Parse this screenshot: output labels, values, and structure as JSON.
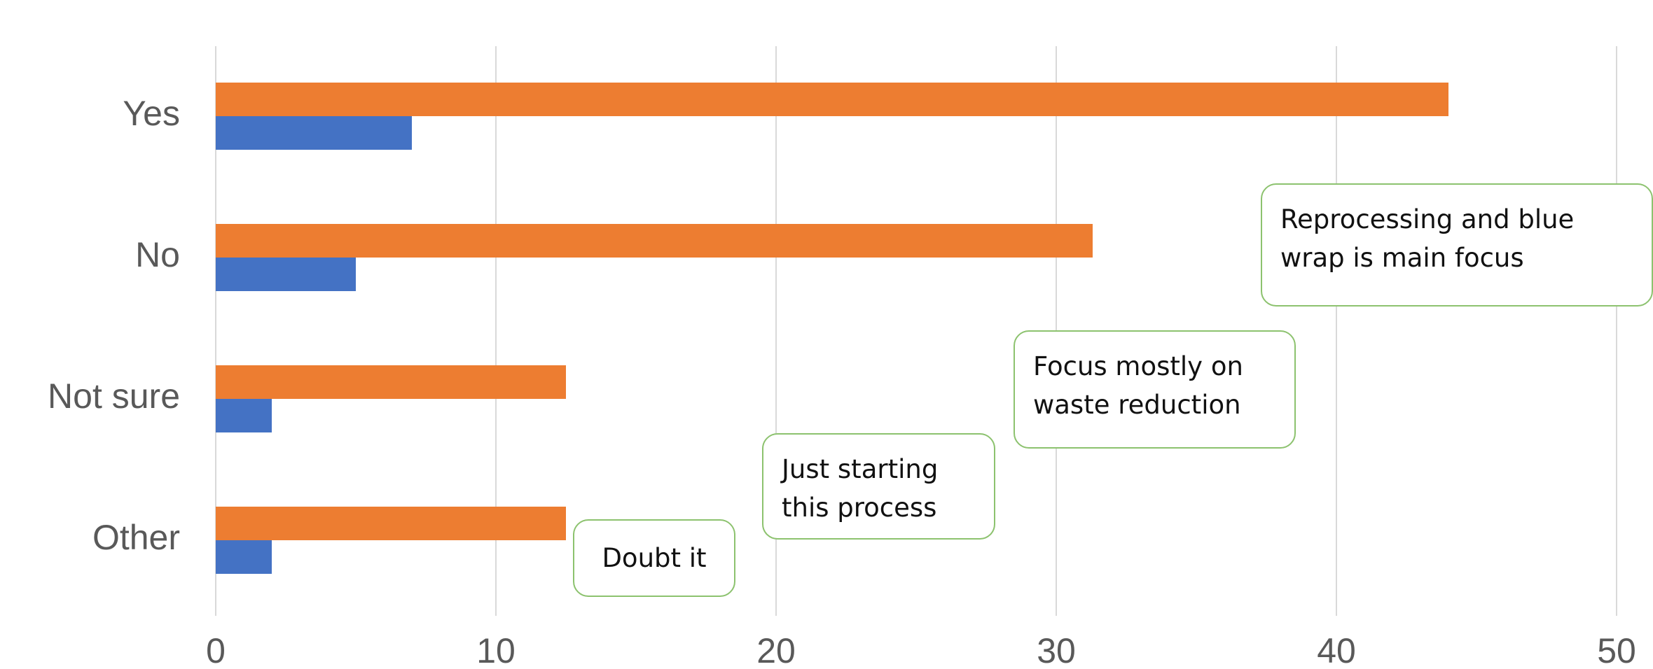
{
  "chart_data": {
    "type": "bar",
    "orientation": "horizontal",
    "categories": [
      "Yes",
      "No",
      "Not sure",
      "Other"
    ],
    "series": [
      {
        "color": "#ed7d31",
        "values": [
          44,
          31.3,
          12.5,
          12.5
        ]
      },
      {
        "color": "#4472c4",
        "values": [
          7,
          5,
          2,
          2
        ]
      }
    ],
    "xlim": [
      0,
      50
    ],
    "xticks": [
      0,
      10,
      20,
      30,
      40,
      50
    ],
    "grid": true,
    "annotations": [
      "Reprocessing and blue wrap is main focus",
      "Focus mostly on waste reduction",
      "Just starting this process",
      "Doubt it"
    ]
  }
}
